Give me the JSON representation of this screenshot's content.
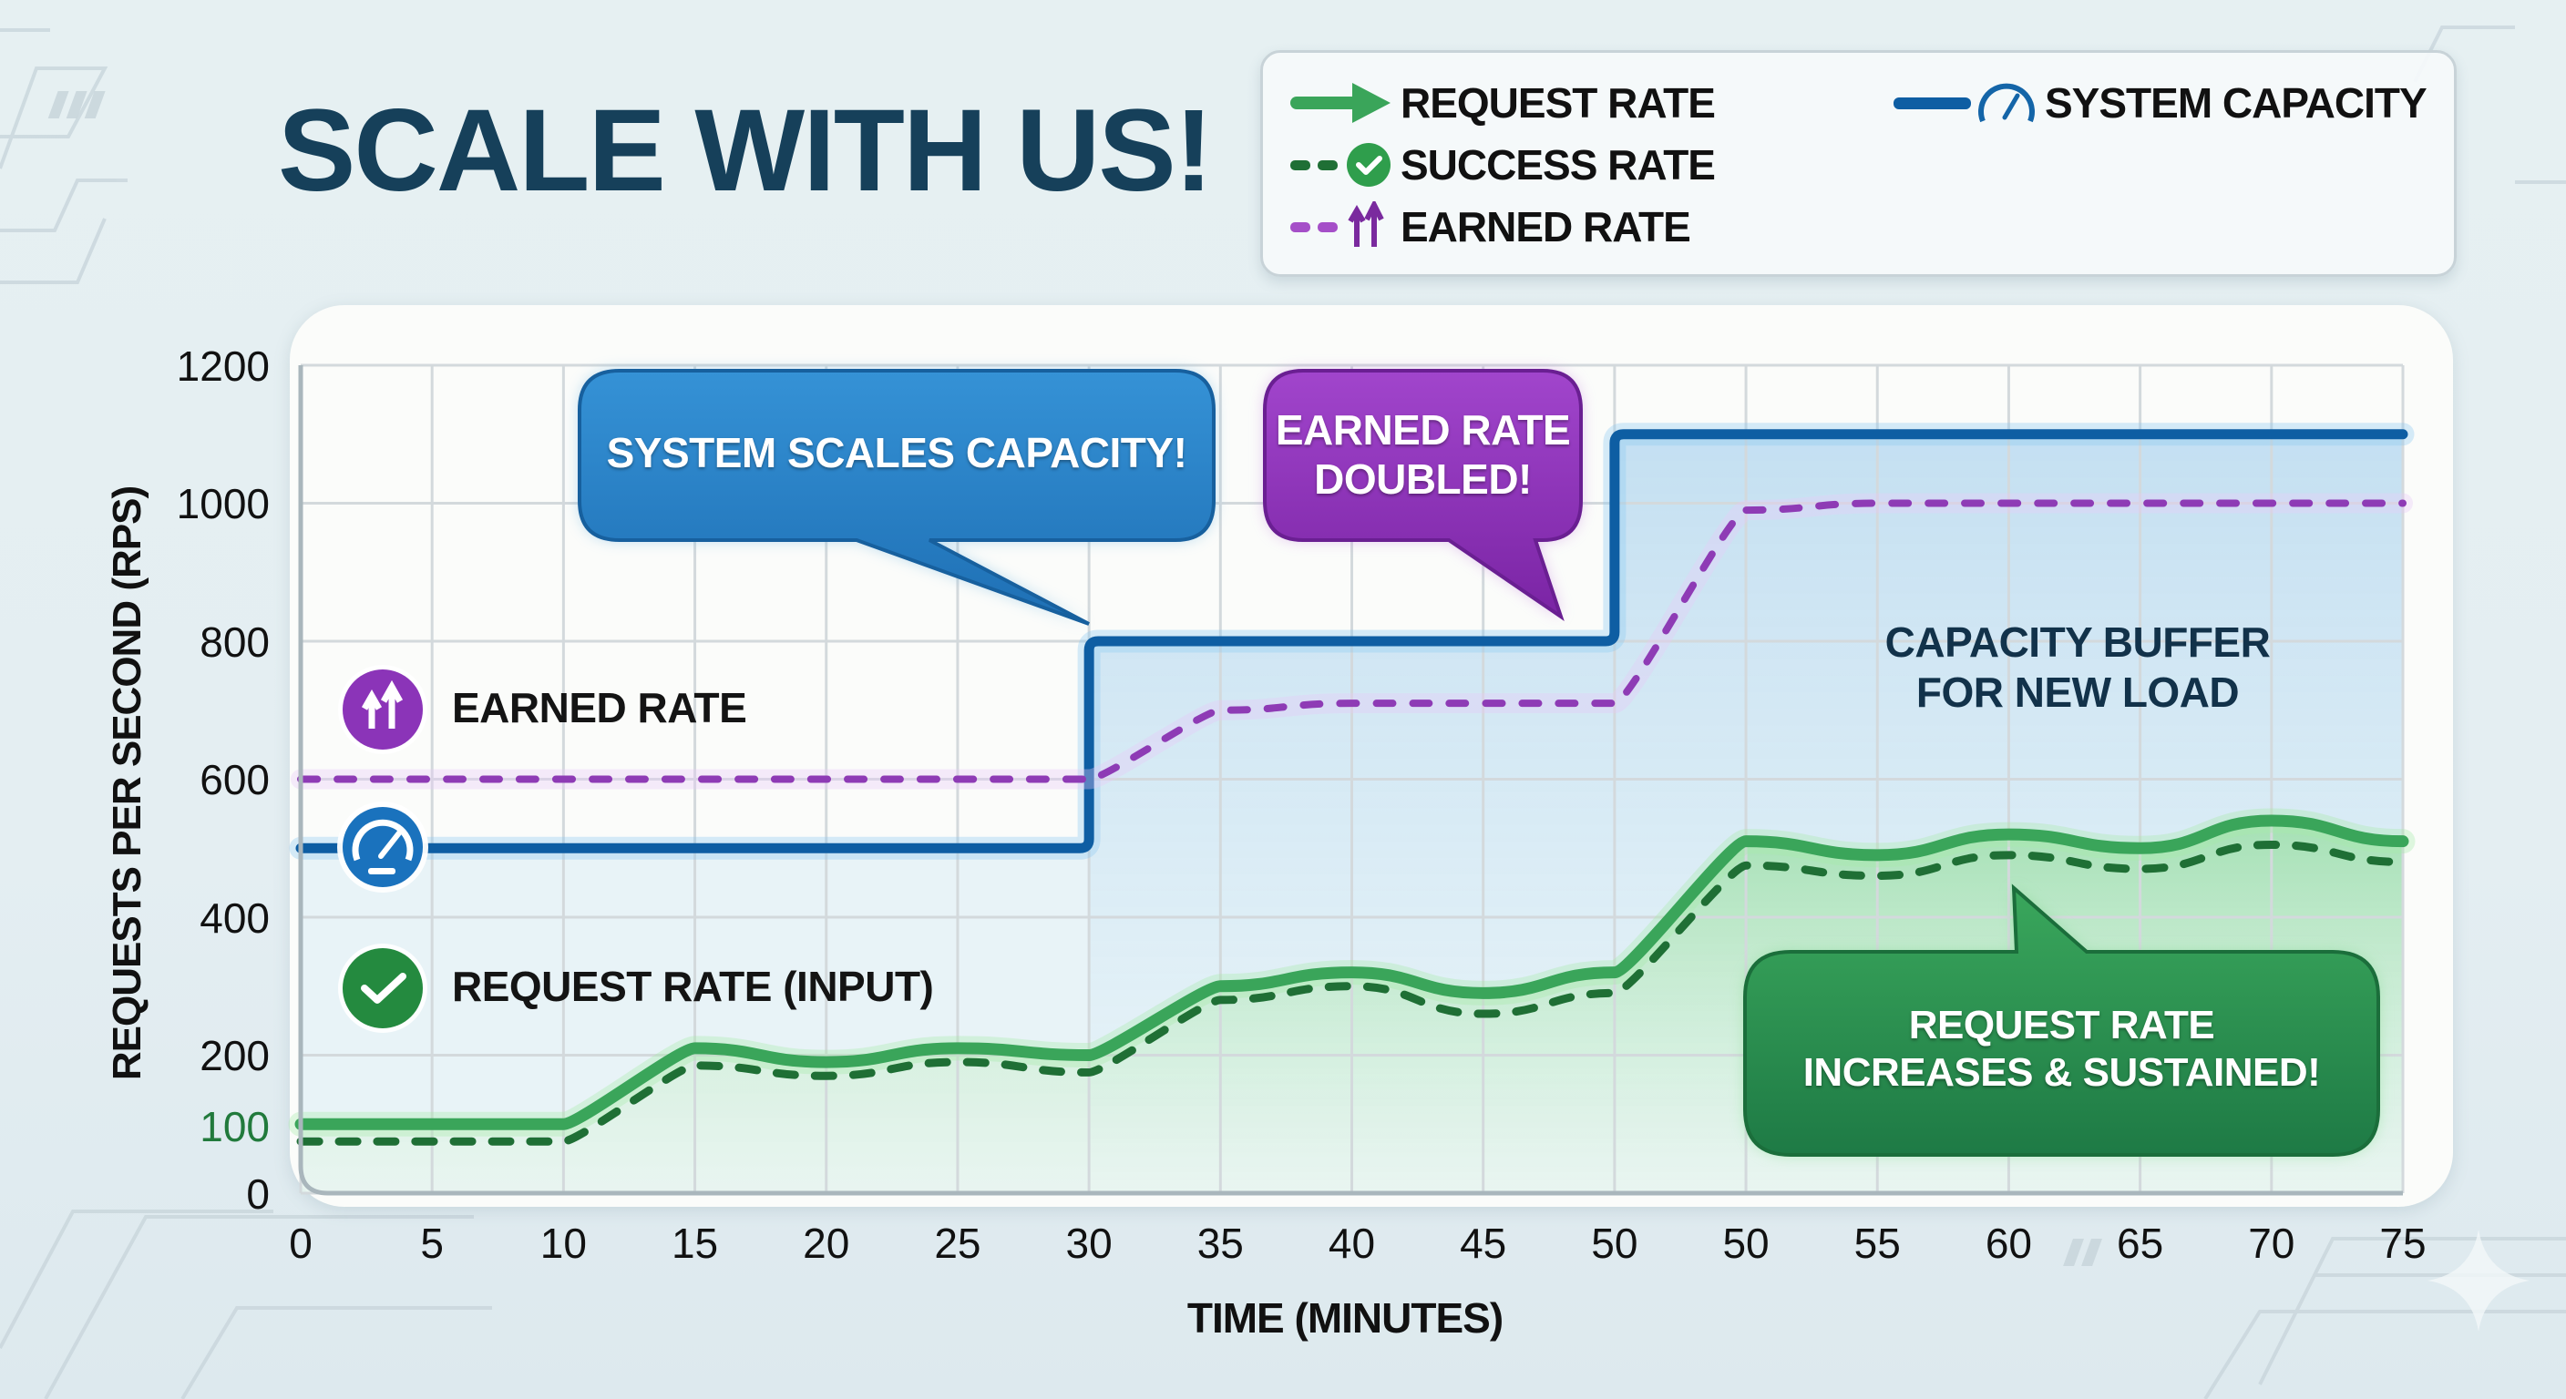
{
  "title": "SCALE WITH US!",
  "legend": {
    "items": [
      {
        "label": "REQUEST RATE",
        "icon": "green-arrow-right-icon",
        "line": "solid",
        "color": "#3aa55a"
      },
      {
        "label": "SUCCESS RATE",
        "icon": "green-check-circle-icon",
        "line": "dashed",
        "color": "#1f6f35"
      },
      {
        "label": "EARNED RATE",
        "icon": "purple-double-up-arrow-icon",
        "line": "dashed",
        "color": "#8e3bb5"
      },
      {
        "label": "SYSTEM CAPACITY",
        "icon": "blue-speedometer-icon",
        "line": "solid",
        "color": "#0e5ea3"
      }
    ]
  },
  "axes": {
    "ylabel": "REQUESTS PER SECOND (RPS)",
    "xlabel": "TIME (MINUTES)",
    "yticks": [
      "1200",
      "1000",
      "800",
      "600",
      "400",
      "200",
      "100",
      "0"
    ],
    "xticks": [
      "0",
      "5",
      "10",
      "15",
      "20",
      "25",
      "30",
      "35",
      "40",
      "45",
      "50",
      "50",
      "55",
      "60",
      "65",
      "70",
      "75"
    ]
  },
  "callouts": {
    "capacity": "SYSTEM SCALES CAPACITY!",
    "earned_line1": "EARNED RATE",
    "earned_line2": "DOUBLED!",
    "request_line1": "REQUEST RATE",
    "request_line2": "INCREASES & SUSTAINED!",
    "buffer_line1": "CAPACITY BUFFER",
    "buffer_line2": "FOR NEW LOAD"
  },
  "inline_labels": {
    "earned": "EARNED RATE",
    "request": "REQUEST RATE (INPUT)"
  },
  "colors": {
    "title": "#16405a",
    "capacity": "#0e5ea3",
    "request": "#3aa55a",
    "success": "#1f6f35",
    "earned": "#8e3bb5",
    "callout_blue": "#2a80c4",
    "callout_purple": "#8a32b4",
    "callout_green": "#2a8f4e"
  },
  "chart_data": {
    "type": "line",
    "title": "SCALE WITH US!",
    "xlabel": "TIME (MINUTES)",
    "ylabel": "REQUESTS PER SECOND (RPS)",
    "x_tick_labels": [
      "0",
      "5",
      "10",
      "15",
      "20",
      "25",
      "30",
      "35",
      "40",
      "45",
      "50",
      "50",
      "55",
      "60",
      "65",
      "70",
      "75"
    ],
    "x": [
      0,
      5,
      10,
      15,
      20,
      25,
      30,
      35,
      40,
      45,
      50,
      50,
      55,
      60,
      65,
      70,
      75
    ],
    "ylim": [
      0,
      1200
    ],
    "yticks": [
      0,
      100,
      200,
      400,
      600,
      800,
      1000,
      1200
    ],
    "grid": true,
    "legend_position": "top-right",
    "series": [
      {
        "name": "SYSTEM CAPACITY",
        "style": "solid",
        "values": [
          500,
          500,
          500,
          500,
          500,
          500,
          500,
          800,
          800,
          800,
          800,
          1100,
          1100,
          1100,
          1100,
          1100,
          1100
        ]
      },
      {
        "name": "EARNED RATE",
        "style": "dashed",
        "values": [
          600,
          600,
          600,
          600,
          600,
          600,
          600,
          700,
          710,
          710,
          710,
          990,
          1000,
          1000,
          1000,
          1000,
          1000
        ]
      },
      {
        "name": "REQUEST RATE",
        "style": "solid",
        "values": [
          100,
          100,
          100,
          210,
          190,
          210,
          200,
          300,
          320,
          290,
          320,
          510,
          490,
          520,
          500,
          540,
          510
        ]
      },
      {
        "name": "SUCCESS RATE",
        "style": "dashed",
        "values": [
          75,
          75,
          75,
          185,
          170,
          190,
          175,
          280,
          300,
          260,
          290,
          475,
          460,
          490,
          470,
          505,
          480
        ]
      }
    ],
    "annotations": [
      "SYSTEM SCALES CAPACITY!",
      "EARNED RATE DOUBLED!",
      "CAPACITY BUFFER FOR NEW LOAD",
      "REQUEST RATE INCREASES & SUSTAINED!",
      "EARNED RATE",
      "REQUEST RATE (INPUT)"
    ]
  }
}
